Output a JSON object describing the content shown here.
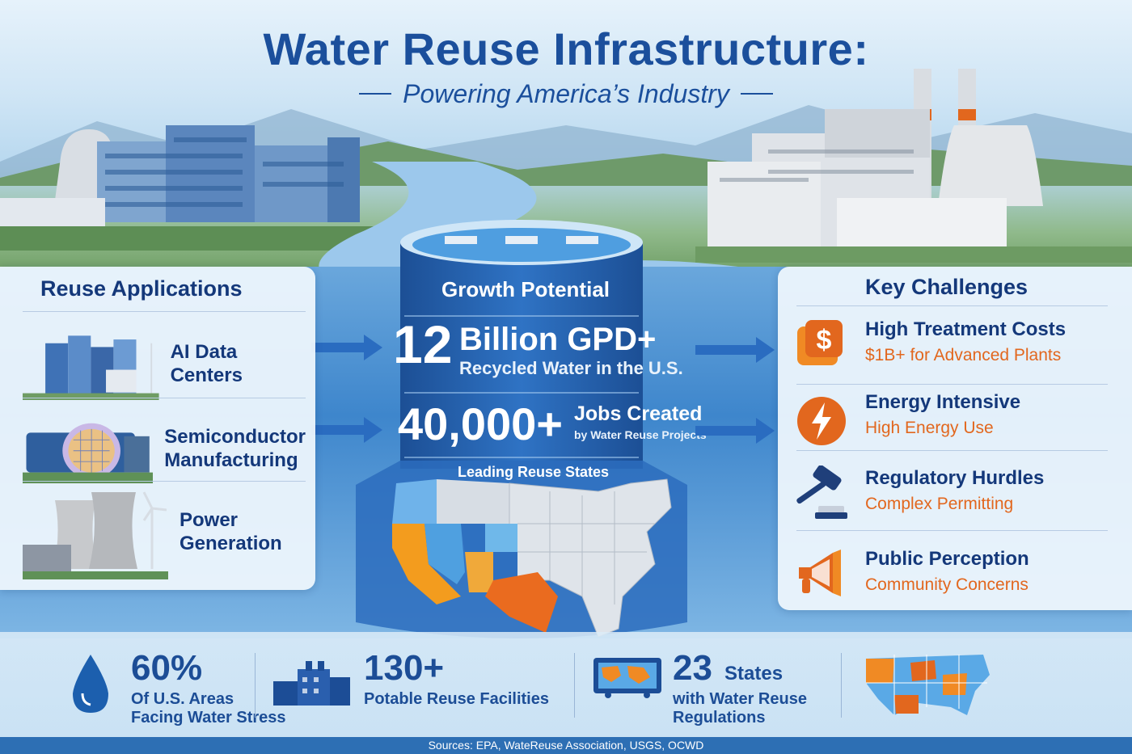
{
  "header": {
    "title": "Water Reuse Infrastructure:",
    "subtitle": "Powering America’s Industry"
  },
  "reuse_applications": {
    "heading": "Reuse Applications",
    "items": [
      {
        "label": "AI Data Centers",
        "icon": "data-center-icon"
      },
      {
        "label_line1": "Semiconductor",
        "label_line2": "Manufacturing",
        "icon": "semiconductor-fab-icon"
      },
      {
        "label_line1": "Power",
        "label_line2": "Generation",
        "icon": "power-plant-icon"
      }
    ]
  },
  "growth_potential": {
    "heading": "Growth Potential",
    "stat1_number": "12",
    "stat1_unit": "Billion GPD+",
    "stat1_caption": "Recycled Water in the U.S.",
    "stat2_number": "40,000+",
    "stat2_unit": "Jobs Created",
    "stat2_caption": "by Water Reuse Projects",
    "map_label": "Leading Reuse States"
  },
  "key_challenges": {
    "heading": "Key Challenges",
    "items": [
      {
        "title": "High Treatment Costs",
        "detail": "$1B+ for Advanced Plants",
        "icon": "dollar-icon"
      },
      {
        "title": "Energy Intensive",
        "detail": "High Energy Use",
        "icon": "lightning-icon"
      },
      {
        "title": "Regulatory Hurdles",
        "detail": "Complex Permitting",
        "icon": "gavel-icon"
      },
      {
        "title": "Public Perception",
        "detail": "Community Concerns",
        "icon": "megaphone-icon"
      }
    ]
  },
  "bottom_stats": [
    {
      "number": "60%",
      "line1": "Of U.S. Areas",
      "line2": "Facing Water Stress",
      "icon": "water-drop-icon"
    },
    {
      "number": "130+",
      "line1": "Potable Reuse Facilities",
      "icon": "facility-icon"
    },
    {
      "number": "23",
      "suffix": "States",
      "line1": "with Water Reuse",
      "line2": "Regulations",
      "icon": "world-map-icon"
    }
  ],
  "sources": "Sources: EPA, WateReuse Association, USGS, OCWD",
  "colors": {
    "brand_blue": "#1b4f9c",
    "accent_orange": "#e2671e",
    "light_blue": "#5aa9e6"
  }
}
